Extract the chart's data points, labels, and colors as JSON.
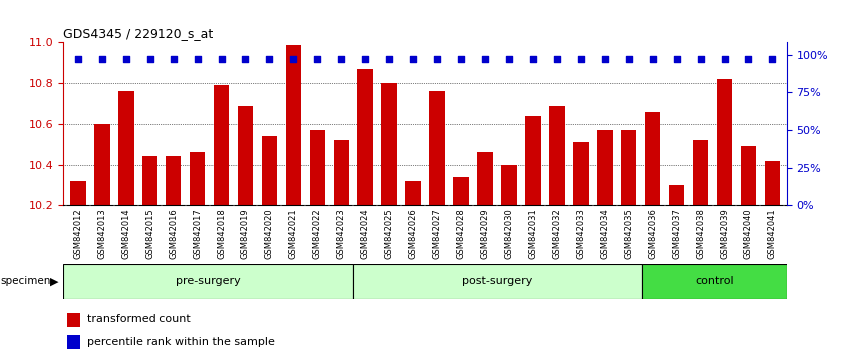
{
  "title": "GDS4345 / 229120_s_at",
  "categories": [
    "GSM842012",
    "GSM842013",
    "GSM842014",
    "GSM842015",
    "GSM842016",
    "GSM842017",
    "GSM842018",
    "GSM842019",
    "GSM842020",
    "GSM842021",
    "GSM842022",
    "GSM842023",
    "GSM842024",
    "GSM842025",
    "GSM842026",
    "GSM842027",
    "GSM842028",
    "GSM842029",
    "GSM842030",
    "GSM842031",
    "GSM842032",
    "GSM842033",
    "GSM842034",
    "GSM842035",
    "GSM842036",
    "GSM842037",
    "GSM842038",
    "GSM842039",
    "GSM842040",
    "GSM842041"
  ],
  "bar_values": [
    10.32,
    10.6,
    10.76,
    10.44,
    10.44,
    10.46,
    10.79,
    10.69,
    10.54,
    10.99,
    10.57,
    10.52,
    10.87,
    10.8,
    10.32,
    10.76,
    10.34,
    10.46,
    10.4,
    10.64,
    10.69,
    10.51,
    10.57,
    10.57,
    10.66,
    10.3,
    10.52,
    10.82,
    10.49,
    10.42
  ],
  "groups": [
    {
      "label": "pre-surgery",
      "start": 0,
      "end": 12,
      "color": "#ccffcc"
    },
    {
      "label": "post-surgery",
      "start": 12,
      "end": 24,
      "color": "#ccffcc"
    },
    {
      "label": "control",
      "start": 24,
      "end": 30,
      "color": "#44dd44"
    }
  ],
  "ylim": [
    10.2,
    11.0
  ],
  "yticks": [
    10.2,
    10.4,
    10.6,
    10.8,
    11.0
  ],
  "grid_lines": [
    10.4,
    10.6,
    10.8
  ],
  "bar_color": "#cc0000",
  "percentile_color": "#0000cc",
  "tick_area_color": "#d8d8d8"
}
